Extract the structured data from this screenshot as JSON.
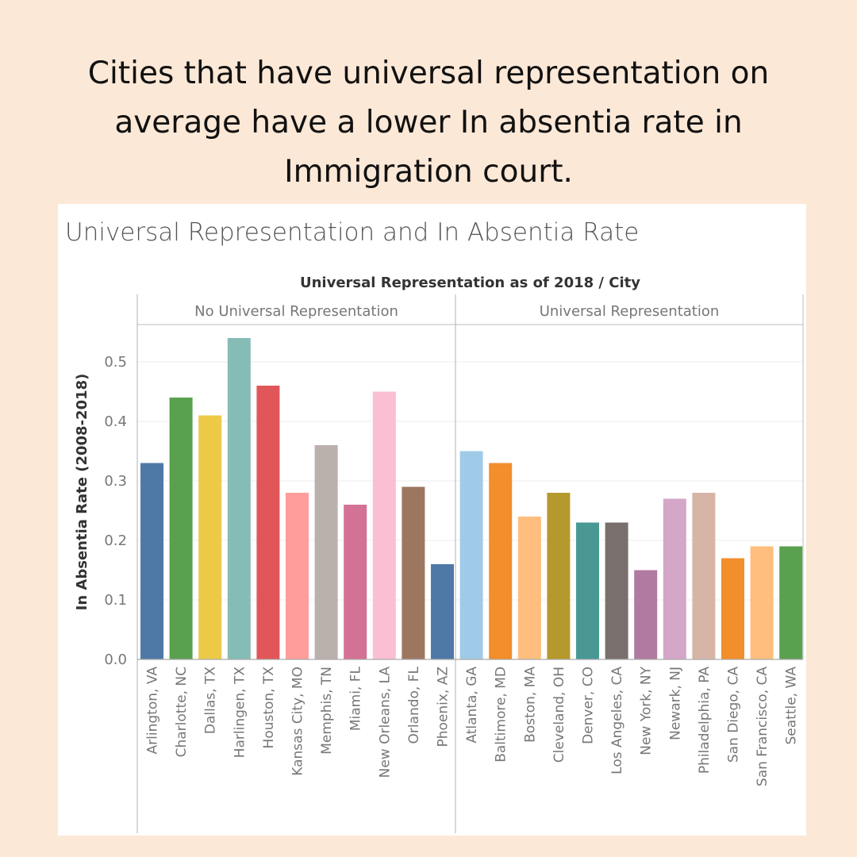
{
  "headline": {
    "line1": "Cities that have universal representation on",
    "line2": "average have a lower In absentia rate in",
    "line3": "Immigration court."
  },
  "chart_data": {
    "type": "bar",
    "title": "Universal Representation and In Absentia Rate",
    "column_header": "Universal Representation as of 2018  /  City",
    "ylabel": "In Absentia Rate (2008-2018)",
    "ylim": [
      0,
      0.56
    ],
    "yticks": [
      "0.0",
      "0.1",
      "0.2",
      "0.3",
      "0.4",
      "0.5"
    ],
    "grid": true,
    "groups": [
      {
        "name": "No Universal Representation",
        "categories": [
          "Arlington, VA",
          "Charlotte, NC",
          "Dallas, TX",
          "Harlingen, TX",
          "Houston, TX",
          "Kansas City, MO",
          "Memphis, TN",
          "Miami, FL",
          "New Orleans, LA",
          "Orlando, FL",
          "Phoenix, AZ"
        ],
        "values": [
          0.33,
          0.44,
          0.41,
          0.54,
          0.46,
          0.28,
          0.36,
          0.26,
          0.45,
          0.29,
          0.16
        ],
        "colors": [
          "#4e79a7",
          "#59a14f",
          "#edc948",
          "#86bcb6",
          "#e15759",
          "#ff9d9a",
          "#bab0ac",
          "#d37295",
          "#fabfd2",
          "#9d7660",
          "#4e79a7"
        ]
      },
      {
        "name": "Universal Representation",
        "categories": [
          "Atlanta, GA",
          "Baltimore, MD",
          "Boston, MA",
          "Cleveland, OH",
          "Denver, CO",
          "Los Angeles, CA",
          "New York, NY",
          "Newark, NJ",
          "Philadelphia, PA",
          "San Diego, CA",
          "San Francisco, CA",
          "Seattle, WA"
        ],
        "values": [
          0.35,
          0.33,
          0.24,
          0.28,
          0.23,
          0.23,
          0.15,
          0.27,
          0.28,
          0.17,
          0.19,
          0.19
        ],
        "colors": [
          "#a0cbe8",
          "#f28e2b",
          "#ffbe7d",
          "#b6992d",
          "#499894",
          "#79706e",
          "#b07aa1",
          "#d4a6c8",
          "#d7b5a6",
          "#f28e2b",
          "#ffbe7d",
          "#59a14f"
        ]
      }
    ]
  }
}
